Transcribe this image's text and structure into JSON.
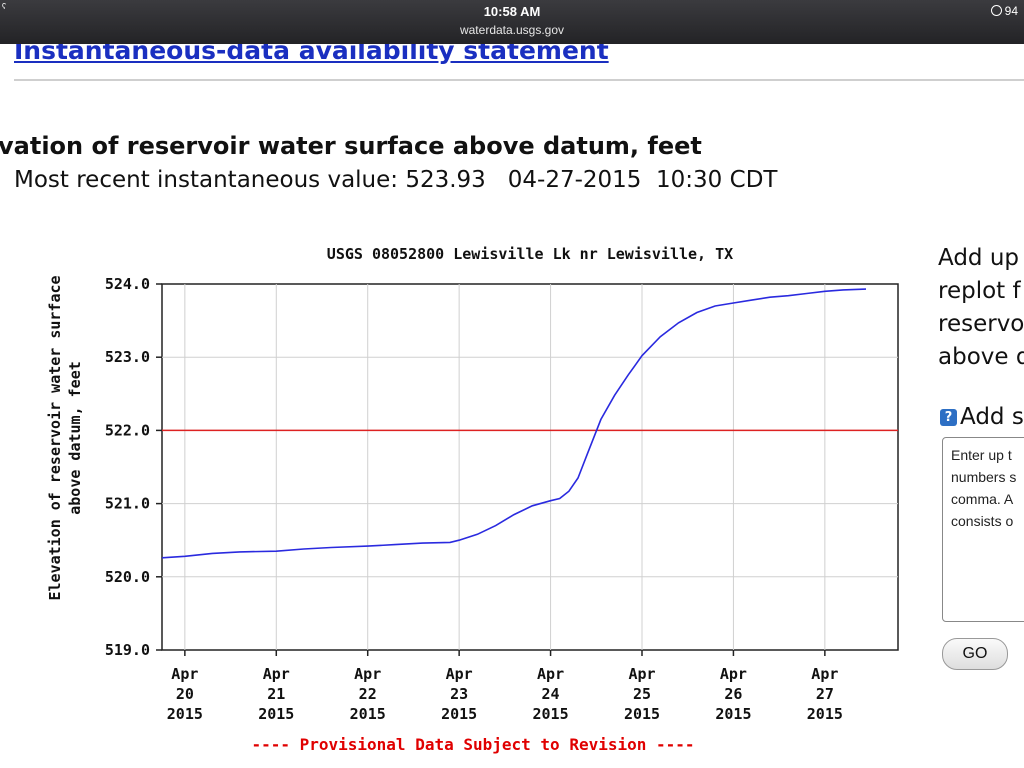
{
  "statusbar": {
    "time": "10:58 AM",
    "url": "waterdata.usgs.gov",
    "left_glyph": "ˁ",
    "right_text": "94"
  },
  "page": {
    "heading": "Instantaneous-data availability statement",
    "parameter_title": "vation of reservoir water surface above datum, feet",
    "recent_label": "Most recent instantaneous value: 523.93   04-27-2015  10:30 CDT"
  },
  "sidebar": {
    "lines": [
      "Add up",
      "replot f",
      "reservo",
      "above d"
    ],
    "help_icon": "?",
    "help_label": "Add s",
    "textarea_text": "Enter up t\nnumbers s\ncomma. A\nconsists o",
    "go_label": "GO"
  },
  "chart_data": {
    "type": "line",
    "title": "USGS 08052800 Lewisville Lk nr Lewisville, TX",
    "ylabel_lines": [
      "Elevation of reservoir water surface",
      "above datum, feet"
    ],
    "footer": "---- Provisional Data Subject to Revision ----",
    "ylim": [
      519.0,
      524.0
    ],
    "y_ticks": [
      "524.0",
      "523.0",
      "522.0",
      "521.0",
      "520.0",
      "519.0"
    ],
    "x_ticks": [
      [
        "Apr",
        "20",
        "2015"
      ],
      [
        "Apr",
        "21",
        "2015"
      ],
      [
        "Apr",
        "22",
        "2015"
      ],
      [
        "Apr",
        "23",
        "2015"
      ],
      [
        "Apr",
        "24",
        "2015"
      ],
      [
        "Apr",
        "25",
        "2015"
      ],
      [
        "Apr",
        "26",
        "2015"
      ],
      [
        "Apr",
        "27",
        "2015"
      ]
    ],
    "xlim_days": [
      19.75,
      27.8
    ],
    "grid": true,
    "reference_line": {
      "value": 522.0,
      "color": "#dd2222"
    },
    "series": [
      {
        "color": "#2a2adf",
        "x_day": [
          19.75,
          20.0,
          20.3,
          20.6,
          21.0,
          21.3,
          21.6,
          22.0,
          22.3,
          22.6,
          22.9,
          23.0,
          23.2,
          23.4,
          23.6,
          23.8,
          24.0,
          24.1,
          24.2,
          24.3,
          24.4,
          24.55,
          24.7,
          24.85,
          25.0,
          25.2,
          25.4,
          25.6,
          25.8,
          26.0,
          26.2,
          26.4,
          26.6,
          26.8,
          27.0,
          27.2,
          27.45
        ],
        "y": [
          520.26,
          520.28,
          520.32,
          520.34,
          520.35,
          520.38,
          520.4,
          520.42,
          520.44,
          520.46,
          520.47,
          520.5,
          520.58,
          520.7,
          520.85,
          520.97,
          521.04,
          521.07,
          521.17,
          521.35,
          521.67,
          522.15,
          522.48,
          522.76,
          523.02,
          523.28,
          523.47,
          523.61,
          523.7,
          523.74,
          523.78,
          523.82,
          523.84,
          523.87,
          523.9,
          523.92,
          523.93
        ]
      }
    ]
  }
}
